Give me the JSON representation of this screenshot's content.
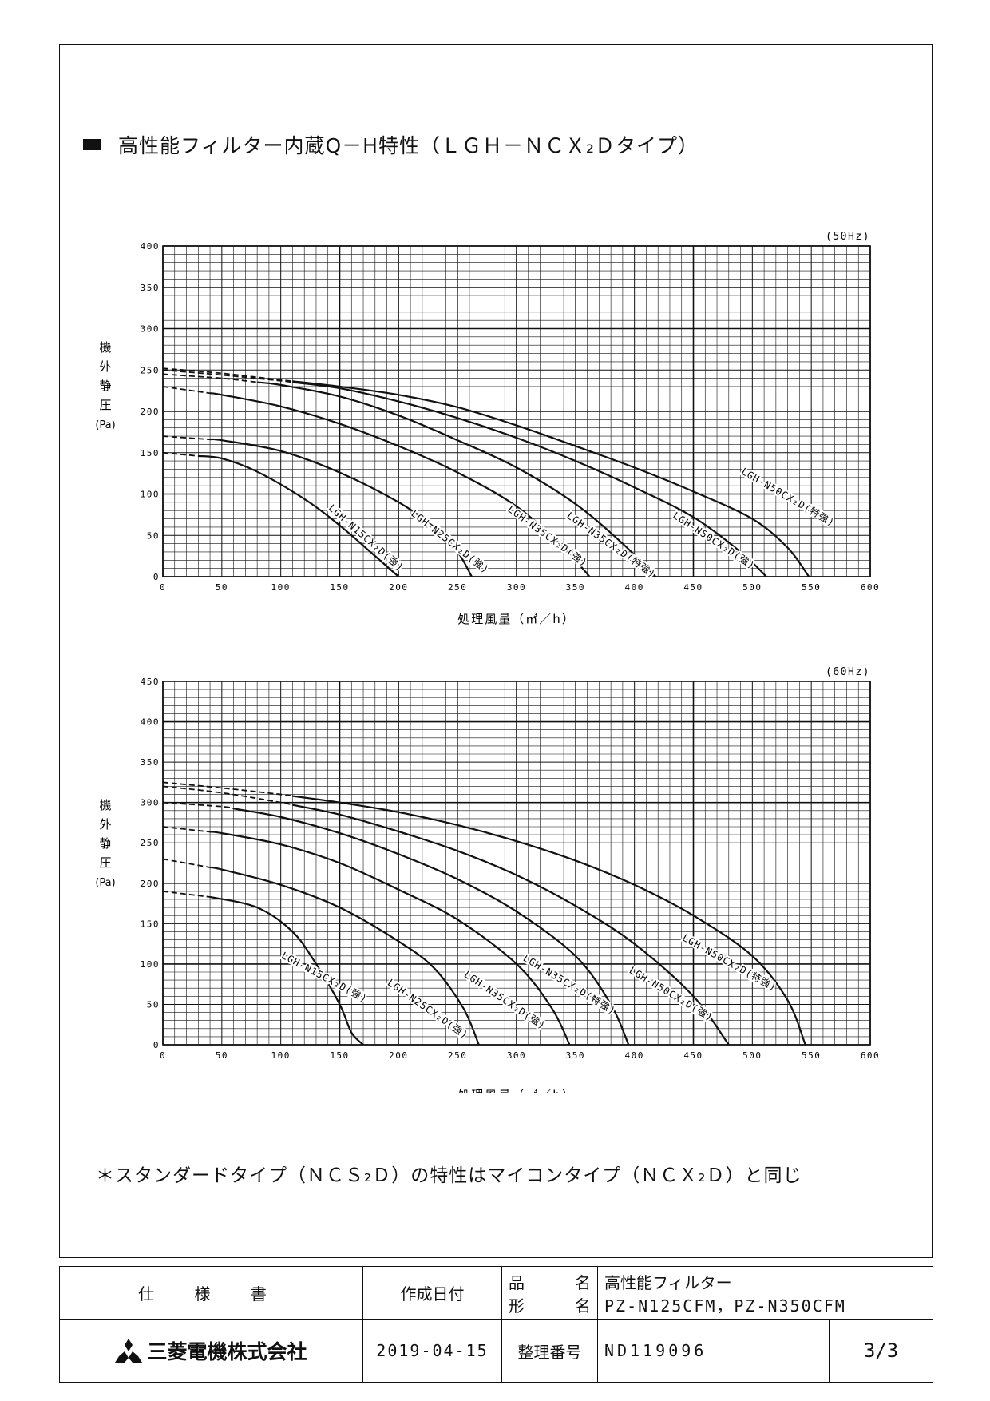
{
  "page": {
    "title": "高性能フィルター内蔵Q－H特性（ＬＧＨ－ＮＣＸ₂Ｄタイプ）",
    "note": "＊スタンダードタイプ（ＮＣＳ₂Ｄ）の特性はマイコンタイプ（ＮＣＸ₂Ｄ）と同じ"
  },
  "footer": {
    "doc_type": "仕 様 書",
    "company": "三菱電機株式会社",
    "created_label": "作成日付",
    "created_date": "2019-04-15",
    "product_label_1": "品",
    "product_label_2": "名",
    "model_label_1": "形",
    "model_label_2": "名",
    "product_name": "高性能フィルター",
    "model_name": "PZ-N125CFM，PZ-N350CFM",
    "control_label": "整理番号",
    "doc_number": "ND119096",
    "page": "3/3"
  },
  "chart_data": [
    {
      "type": "line",
      "freq": "(50Hz)",
      "xlabel": "処理風量（㎥／h）",
      "ylabel": [
        "機",
        "外",
        "静",
        "圧",
        "(Pa)"
      ],
      "xlim": [
        0,
        600
      ],
      "ylim": [
        0,
        400
      ],
      "xticks": [
        0,
        50,
        100,
        150,
        200,
        250,
        300,
        350,
        400,
        450,
        500,
        550,
        600
      ],
      "yticks": [
        0,
        50,
        100,
        150,
        200,
        250,
        300,
        350,
        400
      ],
      "grid": true,
      "series": [
        {
          "name": "LGH-N15CX₂D(強)",
          "x": [
            0,
            30,
            50,
            80,
            120,
            150,
            180,
            200
          ],
          "y": [
            150,
            146,
            143,
            127,
            94,
            62,
            25,
            0
          ],
          "dash_until": 30,
          "label_at": [
            140,
            82
          ],
          "label_angle": 41
        },
        {
          "name": "LGH-N25CX₂D(強)",
          "x": [
            0,
            50,
            100,
            150,
            200,
            230,
            250,
            262
          ],
          "y": [
            170,
            165,
            152,
            126,
            90,
            60,
            30,
            0
          ],
          "dash_until": 40,
          "label_at": [
            210,
            75
          ],
          "label_angle": 38
        },
        {
          "name": "LGH-N35CX₂D(強)",
          "x": [
            0,
            50,
            100,
            150,
            200,
            250,
            300,
            340,
            362
          ],
          "y": [
            230,
            220,
            206,
            185,
            158,
            126,
            85,
            35,
            0
          ],
          "dash_until": 40,
          "label_at": [
            292,
            80
          ],
          "label_angle": 36
        },
        {
          "name": "LGH-N35CX₂D(特強)",
          "x": [
            0,
            50,
            100,
            150,
            200,
            250,
            300,
            350,
            390,
            418
          ],
          "y": [
            245,
            240,
            232,
            218,
            195,
            165,
            132,
            88,
            40,
            0
          ],
          "dash_until": 80,
          "label_at": [
            342,
            72
          ],
          "label_angle": 35
        },
        {
          "name": "LGH-N50CX₂D(強)",
          "x": [
            0,
            50,
            100,
            150,
            200,
            250,
            300,
            350,
            400,
            450,
            490,
            512
          ],
          "y": [
            250,
            244,
            237,
            228,
            212,
            192,
            168,
            140,
            108,
            72,
            30,
            0
          ],
          "dash_until": 110,
          "label_at": [
            432,
            72
          ],
          "label_angle": 33
        },
        {
          "name": "LGH-N50CX₂D(特強)",
          "x": [
            0,
            50,
            100,
            150,
            200,
            250,
            300,
            350,
            400,
            450,
            500,
            530,
            548
          ],
          "y": [
            252,
            246,
            238,
            230,
            220,
            205,
            183,
            158,
            132,
            103,
            70,
            35,
            0
          ],
          "dash_until": 110,
          "label_at": [
            490,
            125
          ],
          "label_angle": 30
        }
      ]
    },
    {
      "type": "line",
      "freq": "(60Hz)",
      "xlabel": "処理風量（㎥／h）",
      "ylabel": [
        "機",
        "外",
        "静",
        "圧",
        "(Pa)"
      ],
      "xlim": [
        0,
        600
      ],
      "ylim": [
        0,
        450
      ],
      "xticks": [
        0,
        50,
        100,
        150,
        200,
        250,
        300,
        350,
        400,
        450,
        500,
        550,
        600
      ],
      "yticks": [
        0,
        50,
        100,
        150,
        200,
        250,
        300,
        350,
        400,
        450
      ],
      "grid": true,
      "series": [
        {
          "name": "LGH-N15CX₂D(強)",
          "x": [
            0,
            40,
            80,
            110,
            130,
            150,
            160,
            170
          ],
          "y": [
            190,
            183,
            170,
            140,
            100,
            50,
            15,
            0
          ],
          "dash_until": 40,
          "label_at": [
            100,
            108
          ],
          "label_angle": 28
        },
        {
          "name": "LGH-N25CX₂D(強)",
          "x": [
            0,
            50,
            100,
            150,
            200,
            230,
            255,
            268
          ],
          "y": [
            230,
            217,
            198,
            170,
            128,
            95,
            45,
            0
          ],
          "dash_until": 40,
          "label_at": [
            190,
            75
          ],
          "label_angle": 35
        },
        {
          "name": "LGH-N35CX₂D(強)",
          "x": [
            0,
            50,
            100,
            150,
            200,
            250,
            300,
            330,
            345
          ],
          "y": [
            270,
            262,
            248,
            225,
            192,
            155,
            100,
            45,
            0
          ],
          "dash_until": 40,
          "label_at": [
            255,
            85
          ],
          "label_angle": 34
        },
        {
          "name": "LGH-N35CX₂D(特強)",
          "x": [
            0,
            50,
            100,
            150,
            200,
            250,
            300,
            350,
            380,
            395
          ],
          "y": [
            300,
            295,
            282,
            262,
            236,
            205,
            165,
            110,
            50,
            0
          ],
          "dash_until": 60,
          "label_at": [
            305,
            105
          ],
          "label_angle": 31
        },
        {
          "name": "LGH-N50CX₂D(強)",
          "x": [
            0,
            50,
            100,
            150,
            200,
            250,
            300,
            350,
            400,
            450,
            480
          ],
          "y": [
            320,
            312,
            300,
            285,
            264,
            240,
            210,
            172,
            125,
            60,
            0
          ],
          "dash_until": 110,
          "label_at": [
            395,
            90
          ],
          "label_angle": 31
        },
        {
          "name": "LGH-N50CX₂D(特強)",
          "x": [
            0,
            50,
            100,
            150,
            200,
            250,
            300,
            350,
            400,
            450,
            500,
            530,
            545
          ],
          "y": [
            325,
            318,
            310,
            300,
            288,
            272,
            252,
            228,
            198,
            160,
            110,
            55,
            0
          ],
          "dash_until": 110,
          "label_at": [
            440,
            130
          ],
          "label_angle": 29
        }
      ]
    }
  ]
}
